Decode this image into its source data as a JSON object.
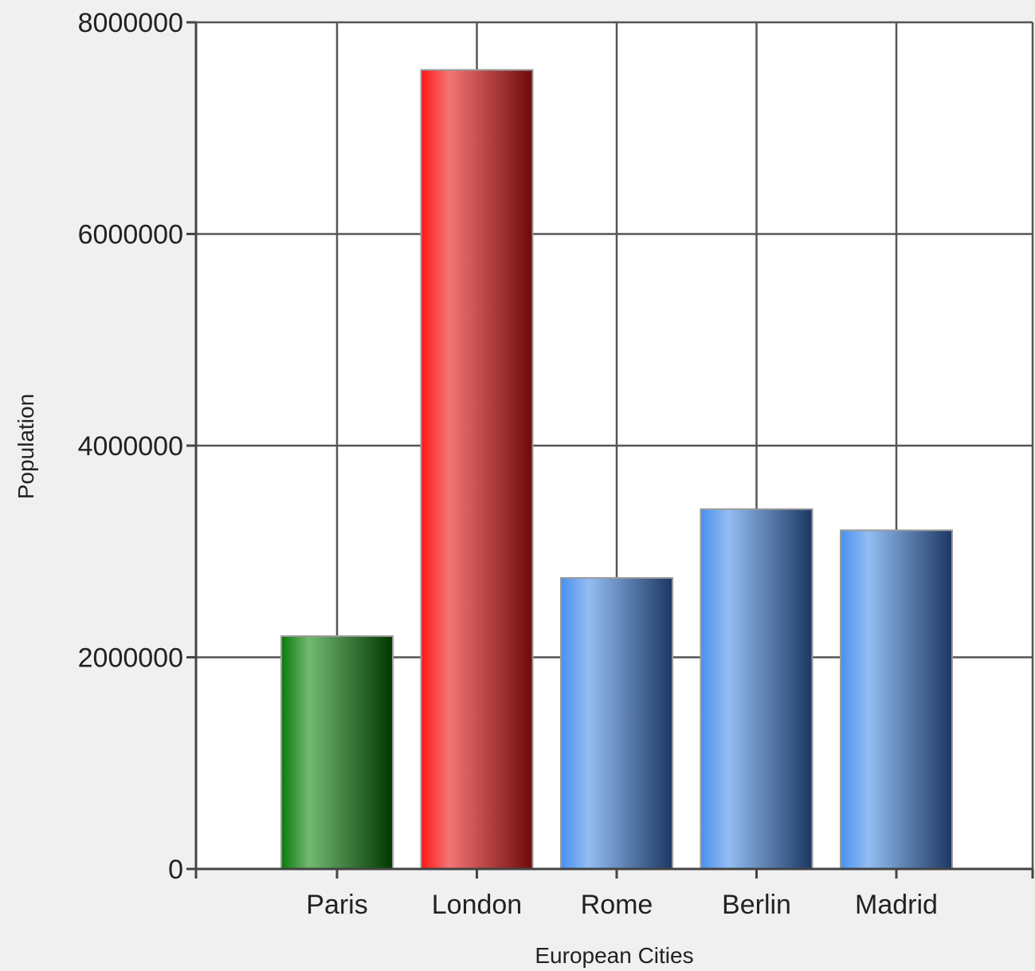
{
  "chart_data": {
    "type": "bar",
    "title": "",
    "xlabel": "European Cities",
    "ylabel": "Population",
    "categories": [
      "Paris",
      "London",
      "Rome",
      "Berlin",
      "Madrid"
    ],
    "values": [
      2200000,
      7550000,
      2750000,
      3400000,
      3200000
    ],
    "ylim": [
      0,
      8000000
    ],
    "yticks": [
      "0",
      "2000000",
      "4000000",
      "6000000",
      "8000000"
    ],
    "grid": true,
    "legend": "none",
    "colors": {
      "Paris": [
        "#0a7a0a",
        "#72b872",
        "#003800"
      ],
      "London": [
        "#ff1515",
        "#f47575",
        "#6e0a0a"
      ],
      "Rome": [
        "#4a90ee",
        "#93bdf2",
        "#1c3762"
      ],
      "Berlin": [
        "#4a90ee",
        "#93bdf2",
        "#1c3762"
      ],
      "Madrid": [
        "#4a90ee",
        "#93bdf2",
        "#1c3762"
      ]
    }
  }
}
